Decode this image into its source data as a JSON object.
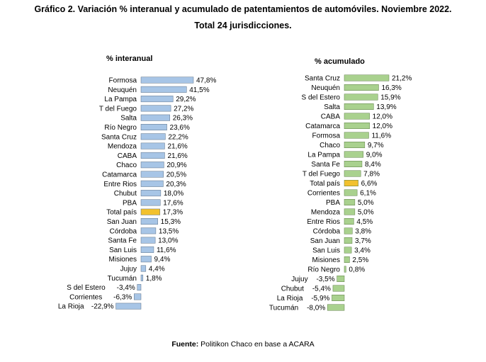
{
  "title_line1": "Gráfico 2. Variación % interanual y acumulado de patentamientos de automóviles. Noviembre 2022.",
  "title_line2": "Total 24 jurisdicciones.",
  "source_label": "Fuente:",
  "source_text": "Politikon Chaco en base a ACARA",
  "colors": {
    "interanual": "#a7c5e6",
    "acumulado": "#a9d18e",
    "highlight": "#f2c12e",
    "bar_edge": "#5a6f86",
    "bar_edge_green": "#5d7d46"
  },
  "chart_data": [
    {
      "type": "bar",
      "orientation": "horizontal",
      "title": "% interanual",
      "highlight_category": "Total país",
      "categories": [
        "Formosa",
        "Neuquén",
        "La Pampa",
        "T del Fuego",
        "Salta",
        "Río Negro",
        "Santa Cruz",
        "Mendoza",
        "CABA",
        "Chaco",
        "Catamarca",
        "Entre Rios",
        "Chubut",
        "PBA",
        "Total país",
        "San Juan",
        "Córdoba",
        "Santa Fe",
        "San Luis",
        "Misiones",
        "Jujuy",
        "Tucumán",
        "S del Estero",
        "Corrientes",
        "La Rioja"
      ],
      "values": [
        47.8,
        41.5,
        29.2,
        27.2,
        26.3,
        23.6,
        22.2,
        21.6,
        21.6,
        20.9,
        20.5,
        20.3,
        18.0,
        17.6,
        17.3,
        15.3,
        13.5,
        13.0,
        11.6,
        9.4,
        4.4,
        1.8,
        -3.4,
        -6.3,
        -22.9
      ],
      "labels": [
        "47,8%",
        "41,5%",
        "29,2%",
        "27,2%",
        "26,3%",
        "23,6%",
        "22,2%",
        "21,6%",
        "21,6%",
        "20,9%",
        "20,5%",
        "20,3%",
        "18,0%",
        "17,6%",
        "17,3%",
        "15,3%",
        "13,5%",
        "13,0%",
        "11,6%",
        "9,4%",
        "4,4%",
        "1,8%",
        "-3,4%",
        "-6,3%",
        "-22,9%"
      ]
    },
    {
      "type": "bar",
      "orientation": "horizontal",
      "title": "% acumulado",
      "highlight_category": "Total país",
      "categories": [
        "Santa Cruz",
        "Neuquén",
        "S del Estero",
        "Salta",
        "CABA",
        "Catamarca",
        "Formosa",
        "Chaco",
        "La Pampa",
        "Santa Fe",
        "T del Fuego",
        "Total país",
        "Corrientes",
        "PBA",
        "Mendoza",
        "Entre Rios",
        "Córdoba",
        "San Juan",
        "San Luis",
        "Misiones",
        "Río Negro",
        "Jujuy",
        "Chubut",
        "La Rioja",
        "Tucumán"
      ],
      "values": [
        21.2,
        16.3,
        15.9,
        13.9,
        12.0,
        12.0,
        11.6,
        9.7,
        9.0,
        8.4,
        7.8,
        6.6,
        6.1,
        5.0,
        5.0,
        4.5,
        3.8,
        3.7,
        3.4,
        2.5,
        0.8,
        -3.5,
        -5.4,
        -5.9,
        -8.0
      ],
      "labels": [
        "21,2%",
        "16,3%",
        "15,9%",
        "13,9%",
        "12,0%",
        "12,0%",
        "11,6%",
        "9,7%",
        "9,0%",
        "8,4%",
        "7,8%",
        "6,6%",
        "6,1%",
        "5,0%",
        "5,0%",
        "4,5%",
        "3,8%",
        "3,7%",
        "3,4%",
        "2,5%",
        "0,8%",
        "-3,5%",
        "-5,4%",
        "-5,9%",
        "-8,0%"
      ]
    }
  ]
}
